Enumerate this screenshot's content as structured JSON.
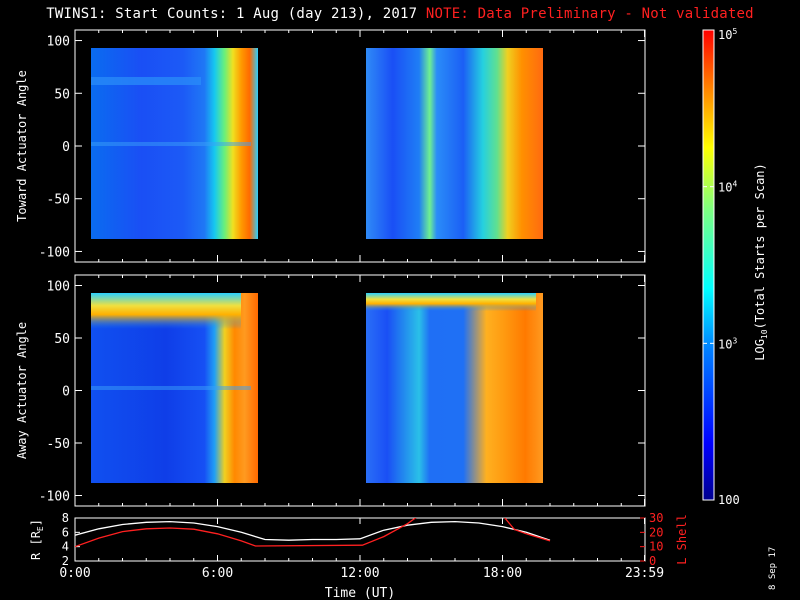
{
  "header": {
    "title": "TWINS1: Start Counts:  1 Aug (day 213), 2017",
    "note": "NOTE: Data Preliminary - Not validated"
  },
  "footer": {
    "date_stamp": "8 Sep 17"
  },
  "colors": {
    "background": "#000000",
    "axes": "#ffffff",
    "note": "#ff2020",
    "lshell": "#ff2020",
    "r_line": "#ffffff"
  },
  "chart_data": [
    {
      "type": "heatmap",
      "panel": "top",
      "ylabel": "Toward Actuator Angle",
      "ylim": [
        -110,
        110
      ],
      "yticks": [
        100,
        50,
        0,
        -50,
        -100
      ],
      "xlim": [
        0,
        24
      ],
      "data_y_range": [
        -88,
        88
      ],
      "data_segments": [
        {
          "start": 0.0,
          "end": 7.6
        },
        {
          "start": 12.1,
          "end": 20.2
        }
      ],
      "colorscale_log10": [
        2,
        5
      ],
      "grid": false
    },
    {
      "type": "heatmap",
      "panel": "middle",
      "ylabel": "Away Actuator Angle",
      "ylim": [
        -110,
        110
      ],
      "yticks": [
        100,
        50,
        0,
        -50,
        -100
      ],
      "xlim": [
        0,
        24
      ],
      "data_y_range": [
        -88,
        88
      ],
      "data_segments": [
        {
          "start": 0.0,
          "end": 7.6
        },
        {
          "start": 12.1,
          "end": 20.2
        }
      ],
      "colorscale_log10": [
        2,
        5
      ],
      "grid": false
    },
    {
      "type": "line",
      "panel": "bottom",
      "ylabel": "R [R",
      "ylabel_sub": "E",
      "ylabel_tail": "]",
      "yticks": [
        2,
        4,
        6,
        8
      ],
      "ylim": [
        2,
        8
      ],
      "y2label": "L Shell",
      "y2ticks": [
        0,
        10,
        20,
        30
      ],
      "y2lim": [
        0,
        30
      ],
      "xlabel": "Time (UT)",
      "xticks": [
        "0:00",
        "6:00",
        "12:00",
        "18:00",
        "23:59"
      ],
      "xtick_values": [
        0,
        6,
        12,
        18,
        23.98
      ],
      "xlim": [
        0,
        24
      ],
      "series": [
        {
          "axis": "left",
          "x": [
            0,
            1,
            2,
            3,
            4,
            5,
            6,
            7,
            8,
            9,
            10,
            11,
            12,
            13,
            14,
            15,
            16,
            17,
            18,
            19,
            20
          ],
          "y": [
            5.6,
            6.5,
            7.1,
            7.4,
            7.5,
            7.3,
            6.8,
            6.0,
            5.0,
            4.9,
            5.0,
            5.0,
            5.1,
            6.3,
            7.0,
            7.4,
            7.5,
            7.3,
            6.8,
            6.0,
            4.9
          ]
        },
        {
          "axis": "right",
          "x": [
            0,
            1,
            2,
            3,
            4,
            5,
            6,
            7,
            7.6,
            12.1,
            13,
            14,
            14.5,
            18,
            18.5,
            19,
            20
          ],
          "y": [
            10,
            16,
            20.5,
            22.5,
            23,
            22.2,
            19,
            14,
            10.5,
            11,
            17,
            26,
            32,
            32,
            22,
            19,
            14
          ]
        }
      ]
    },
    {
      "type": "heatmap",
      "panel": "colorbar",
      "label": "LOG",
      "label_sub": "10",
      "label_tail": "(Total Starts per Scan)",
      "tick_labels": [
        "100",
        "10",
        "10",
        "10"
      ],
      "tick_exps": [
        "",
        "3",
        "4",
        "5"
      ],
      "tick_values_log10": [
        2,
        3,
        4,
        5
      ],
      "range_log10": [
        2,
        5
      ]
    }
  ]
}
